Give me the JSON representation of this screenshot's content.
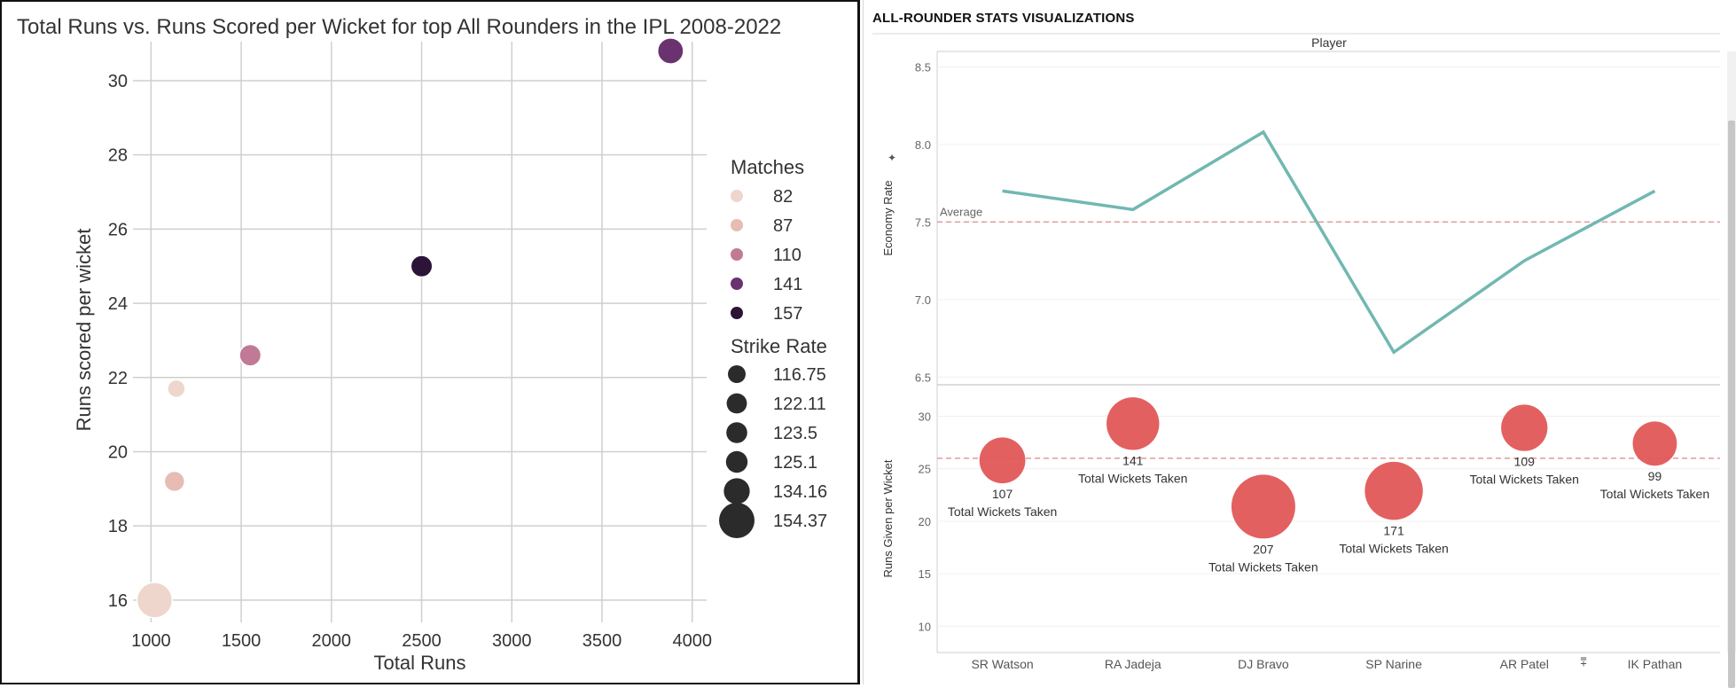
{
  "left_chart_title": "Total Runs vs. Runs Scored per Wicket for top All Rounders in the IPL 2008-2022",
  "dashboard_title": "ALL-ROUNDER STATS VISUALIZATIONS",
  "chart_data": [
    {
      "type": "scatter",
      "title": "Total Runs vs. Runs Scored per Wicket for top All Rounders in the IPL 2008-2022",
      "xlabel": "Total Runs",
      "ylabel": "Runs scored per wicket",
      "xlim": [
        900,
        4080
      ],
      "ylim": [
        15.4,
        31.6
      ],
      "xticks": [
        1000,
        1500,
        2000,
        2500,
        3000,
        3500,
        4000
      ],
      "yticks": [
        16,
        18,
        20,
        22,
        24,
        26,
        28,
        30
      ],
      "grid": true,
      "legend_position": "right",
      "hue_legend": {
        "title": "Matches",
        "entries": [
          {
            "label": "82",
            "color": "#efd6cc"
          },
          {
            "label": "87",
            "color": "#e6bcb3"
          },
          {
            "label": "110",
            "color": "#c07a95"
          },
          {
            "label": "141",
            "color": "#6a3370"
          },
          {
            "label": "157",
            "color": "#2b1438"
          }
        ]
      },
      "size_legend": {
        "title": "Strike Rate",
        "color": "#2b2b2b",
        "entries": [
          {
            "label": "116.75",
            "size": 116.75
          },
          {
            "label": "122.11",
            "size": 122.11
          },
          {
            "label": "123.5",
            "size": 123.5
          },
          {
            "label": "125.1",
            "size": 125.1
          },
          {
            "label": "134.16",
            "size": 134.16
          },
          {
            "label": "154.37",
            "size": 154.37
          }
        ]
      },
      "points": [
        {
          "x": 3880,
          "y": 30.8,
          "matches": 141,
          "strike_rate": 134.16,
          "color": "#6a3370"
        },
        {
          "x": 2500,
          "y": 25.0,
          "matches": 157,
          "strike_rate": 125.1,
          "color": "#2b1438"
        },
        {
          "x": 1550,
          "y": 22.6,
          "matches": 110,
          "strike_rate": 125.1,
          "color": "#c07a95"
        },
        {
          "x": 1140,
          "y": 21.7,
          "matches": 82,
          "strike_rate": 116.75,
          "color": "#efd6cc"
        },
        {
          "x": 1130,
          "y": 19.2,
          "matches": 87,
          "strike_rate": 122.11,
          "color": "#e6bcb3"
        },
        {
          "x": 1020,
          "y": 16.0,
          "matches": 82,
          "strike_rate": 154.37,
          "color": "#efd6cc"
        }
      ]
    },
    {
      "type": "line",
      "title": "Player",
      "ylabel": "Economy Rate",
      "ylim": [
        6.45,
        8.6
      ],
      "yticks": [
        6.5,
        7.0,
        7.5,
        8.0,
        8.5
      ],
      "categories": [
        "SR Watson",
        "RA Jadeja",
        "DJ Bravo",
        "SP Narine",
        "AR Patel",
        "IK Pathan"
      ],
      "values": [
        7.7,
        7.58,
        8.08,
        6.66,
        7.25,
        7.7
      ],
      "reference_line": {
        "label": "Average",
        "value": 7.5
      },
      "line_color": "#72b7b2",
      "ref_color": "#e39a9a"
    },
    {
      "type": "scatter",
      "ylabel": "Runs Given per Wicket",
      "ylim": [
        7.5,
        33
      ],
      "yticks": [
        10,
        15,
        20,
        25,
        30
      ],
      "categories": [
        "SR Watson",
        "RA Jadeja",
        "DJ Bravo",
        "SP Narine",
        "AR Patel",
        "IK Pathan"
      ],
      "values": [
        25.8,
        29.3,
        21.4,
        22.9,
        28.9,
        27.4
      ],
      "total_wickets": [
        107,
        141,
        207,
        171,
        109,
        99
      ],
      "wickets_label": "Total Wickets Taken",
      "reference_value": 26.0,
      "marker_color": "#e15759",
      "ref_color": "#e39a9a"
    }
  ]
}
